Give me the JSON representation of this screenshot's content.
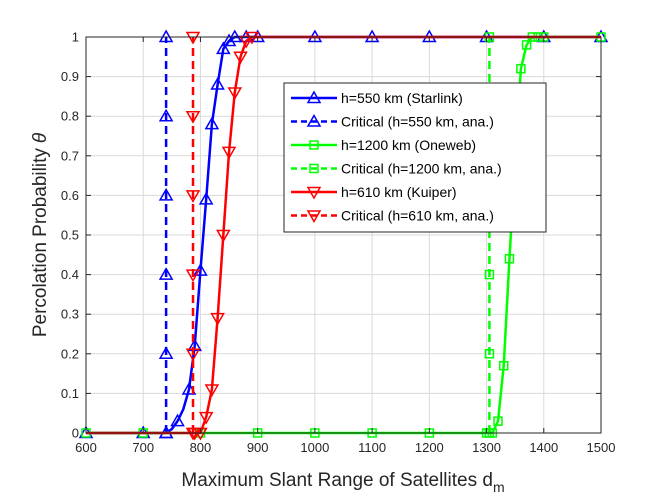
{
  "chart_data": {
    "type": "line",
    "xlabel": "Maximum Slant Range of Satellites d",
    "xlabel_sub": "m",
    "ylabel": "Percolation Probability",
    "ylabel_symbol": "θ",
    "xlim": [
      600,
      1500
    ],
    "ylim": [
      0,
      1
    ],
    "xticks": [
      "600",
      "700",
      "800",
      "900",
      "1000",
      "1100",
      "1200",
      "1300",
      "1400",
      "1500"
    ],
    "yticks": [
      "0",
      "0.1",
      "0.2",
      "0.3",
      "0.4",
      "0.5",
      "0.6",
      "0.7",
      "0.8",
      "0.9",
      "1"
    ],
    "grid": true,
    "legend_position": "upper-middle-right",
    "series": [
      {
        "name": "h=550 km (Starlink)",
        "color": "#0000ff",
        "dash": "solid",
        "marker": "triangle-up",
        "points": [
          [
            600,
            0
          ],
          [
            700,
            0
          ],
          [
            740,
            0
          ],
          [
            750,
            0.01
          ],
          [
            760,
            0.03
          ],
          [
            770,
            0.06
          ],
          [
            780,
            0.11
          ],
          [
            790,
            0.22
          ],
          [
            800,
            0.41
          ],
          [
            810,
            0.59
          ],
          [
            820,
            0.78
          ],
          [
            830,
            0.88
          ],
          [
            840,
            0.97
          ],
          [
            850,
            0.99
          ],
          [
            860,
            1.0
          ],
          [
            870,
            1.0
          ],
          [
            880,
            1.0
          ],
          [
            900,
            1.0
          ],
          [
            1000,
            1.0
          ],
          [
            1100,
            1.0
          ],
          [
            1200,
            1.0
          ],
          [
            1300,
            1.0
          ],
          [
            1400,
            1.0
          ],
          [
            1500,
            1.0
          ]
        ],
        "marker_points": [
          [
            600,
            0
          ],
          [
            700,
            0
          ],
          [
            740,
            0
          ],
          [
            760,
            0.03
          ],
          [
            780,
            0.11
          ],
          [
            790,
            0.22
          ],
          [
            800,
            0.41
          ],
          [
            810,
            0.59
          ],
          [
            820,
            0.78
          ],
          [
            830,
            0.88
          ],
          [
            840,
            0.97
          ],
          [
            850,
            0.99
          ],
          [
            860,
            1.0
          ],
          [
            880,
            1.0
          ],
          [
            900,
            1.0
          ],
          [
            1000,
            1.0
          ],
          [
            1100,
            1.0
          ],
          [
            1200,
            1.0
          ],
          [
            1300,
            1.0
          ],
          [
            1400,
            1.0
          ],
          [
            1500,
            1.0
          ]
        ]
      },
      {
        "name": "Critical (h=550 km, ana.)",
        "color": "#0000ff",
        "dash": "dashed",
        "marker": "triangle-up",
        "points": [
          [
            740,
            0
          ],
          [
            740,
            0.2
          ],
          [
            740,
            0.4
          ],
          [
            740,
            0.6
          ],
          [
            740,
            0.8
          ],
          [
            740,
            1.0
          ]
        ],
        "marker_points": [
          [
            740,
            0
          ],
          [
            740,
            0.2
          ],
          [
            740,
            0.4
          ],
          [
            740,
            0.6
          ],
          [
            740,
            0.8
          ],
          [
            740,
            1.0
          ]
        ]
      },
      {
        "name": "h=1200 km (Oneweb)",
        "color": "#00ff00",
        "dash": "solid",
        "marker": "square",
        "points": [
          [
            600,
            0
          ],
          [
            700,
            0
          ],
          [
            800,
            0
          ],
          [
            900,
            0
          ],
          [
            1000,
            0
          ],
          [
            1100,
            0
          ],
          [
            1200,
            0
          ],
          [
            1300,
            0
          ],
          [
            1310,
            0
          ],
          [
            1320,
            0.03
          ],
          [
            1330,
            0.17
          ],
          [
            1340,
            0.44
          ],
          [
            1350,
            0.69
          ],
          [
            1360,
            0.92
          ],
          [
            1370,
            0.98
          ],
          [
            1380,
            1.0
          ],
          [
            1390,
            1.0
          ],
          [
            1400,
            1.0
          ],
          [
            1500,
            1.0
          ]
        ],
        "marker_points": [
          [
            600,
            0
          ],
          [
            700,
            0
          ],
          [
            800,
            0
          ],
          [
            900,
            0
          ],
          [
            1000,
            0
          ],
          [
            1100,
            0
          ],
          [
            1200,
            0
          ],
          [
            1300,
            0
          ],
          [
            1310,
            0
          ],
          [
            1320,
            0.03
          ],
          [
            1330,
            0.17
          ],
          [
            1340,
            0.44
          ],
          [
            1360,
            0.92
          ],
          [
            1370,
            0.98
          ],
          [
            1380,
            1.0
          ],
          [
            1390,
            1.0
          ],
          [
            1400,
            1.0
          ],
          [
            1500,
            1.0
          ]
        ]
      },
      {
        "name": "Critical (h=1200 km, ana.)",
        "color": "#00ff00",
        "dash": "dashed",
        "marker": "square",
        "points": [
          [
            1305,
            0
          ],
          [
            1305,
            0.2
          ],
          [
            1305,
            0.4
          ],
          [
            1305,
            0.6
          ],
          [
            1305,
            0.8
          ],
          [
            1305,
            1.0
          ]
        ],
        "marker_points": [
          [
            1305,
            0
          ],
          [
            1305,
            0.2
          ],
          [
            1305,
            0.4
          ],
          [
            1305,
            0.6
          ],
          [
            1305,
            0.8
          ],
          [
            1305,
            1.0
          ]
        ]
      },
      {
        "name": "h=610 km (Kuiper)",
        "color": "#ff0000",
        "dash": "solid",
        "marker": "triangle-down",
        "points": [
          [
            600,
            0
          ],
          [
            700,
            0
          ],
          [
            790,
            0
          ],
          [
            800,
            0
          ],
          [
            810,
            0.04
          ],
          [
            820,
            0.11
          ],
          [
            830,
            0.29
          ],
          [
            840,
            0.5
          ],
          [
            850,
            0.71
          ],
          [
            860,
            0.86
          ],
          [
            870,
            0.95
          ],
          [
            880,
            0.99
          ],
          [
            890,
            1.0
          ],
          [
            900,
            1.0
          ],
          [
            1000,
            1.0
          ],
          [
            1100,
            1.0
          ],
          [
            1200,
            1.0
          ],
          [
            1300,
            1.0
          ],
          [
            1400,
            1.0
          ],
          [
            1500,
            1.0
          ]
        ],
        "marker_points": [
          [
            790,
            0
          ],
          [
            800,
            0
          ],
          [
            810,
            0.04
          ],
          [
            820,
            0.11
          ],
          [
            830,
            0.29
          ],
          [
            840,
            0.5
          ],
          [
            850,
            0.71
          ],
          [
            860,
            0.86
          ],
          [
            870,
            0.95
          ],
          [
            880,
            0.99
          ],
          [
            890,
            1.0
          ]
        ]
      },
      {
        "name": "Critical (h=610 km, ana.)",
        "color": "#ff0000",
        "dash": "dashed",
        "marker": "triangle-down",
        "points": [
          [
            787,
            0
          ],
          [
            787,
            0.2
          ],
          [
            787,
            0.4
          ],
          [
            787,
            0.6
          ],
          [
            787,
            0.8
          ],
          [
            787,
            1.0
          ]
        ],
        "marker_points": [
          [
            787,
            0
          ],
          [
            787,
            0.2
          ],
          [
            787,
            0.4
          ],
          [
            787,
            0.6
          ],
          [
            787,
            0.8
          ],
          [
            787,
            1.0
          ]
        ]
      }
    ]
  }
}
